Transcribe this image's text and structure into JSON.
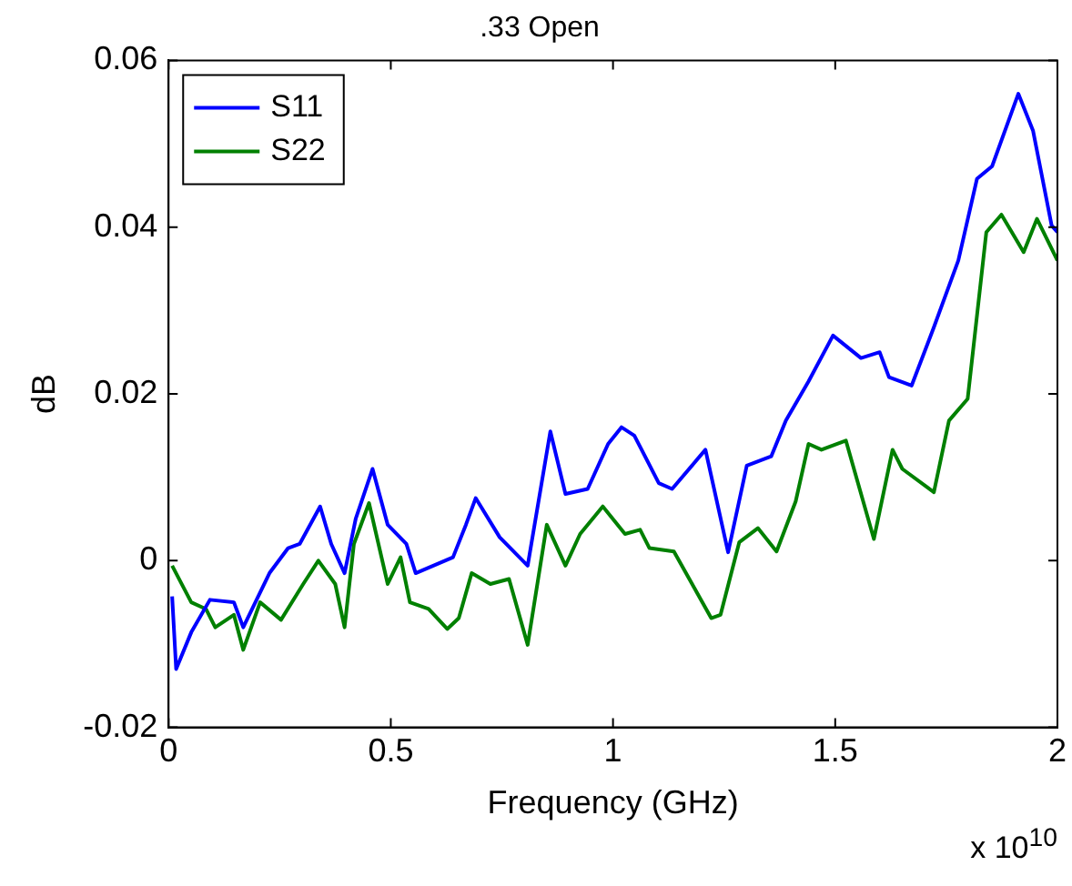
{
  "chart_data": {
    "type": "line",
    "title": ".33 Open",
    "xlabel": "Frequency (GHz)",
    "ylabel": "dB",
    "annotations": [
      "x 10$^{10}$"
    ],
    "xlim": [
      0,
      2
    ],
    "xticks": [
      0,
      0.5,
      1,
      1.5,
      2
    ],
    "ylim": [
      -0.02,
      0.06
    ],
    "yticks": [
      -0.02,
      0,
      0.02,
      0.04,
      0.06
    ],
    "legend": "top left",
    "grid": false,
    "marker": "none",
    "line_style": "solid",
    "series": [
      {
        "name": "S11",
        "color": "#0000ff",
        "x": [
          0.008,
          0.017,
          0.051,
          0.093,
          0.147,
          0.168,
          0.227,
          0.269,
          0.295,
          0.341,
          0.366,
          0.396,
          0.421,
          0.459,
          0.493,
          0.535,
          0.556,
          0.64,
          0.669,
          0.691,
          0.745,
          0.808,
          0.859,
          0.893,
          0.943,
          0.989,
          1.019,
          1.048,
          1.103,
          1.133,
          1.208,
          1.259,
          1.301,
          1.356,
          1.389,
          1.44,
          1.495,
          1.558,
          1.6,
          1.621,
          1.672,
          1.722,
          1.777,
          1.819,
          1.853,
          1.912,
          1.945,
          1.987,
          2.0
        ],
        "values": [
          -0.0043,
          -0.013,
          -0.0086,
          -0.0047,
          -0.005,
          -0.008,
          -0.0015,
          0.0015,
          0.002,
          0.0065,
          0.002,
          -0.0015,
          0.005,
          0.011,
          0.0043,
          0.002,
          -0.0015,
          0.0004,
          0.0043,
          0.0075,
          0.0028,
          -0.0006,
          0.0155,
          0.008,
          0.0086,
          0.014,
          0.016,
          0.015,
          0.0093,
          0.0086,
          0.0133,
          0.001,
          0.0114,
          0.0125,
          0.0168,
          0.0215,
          0.027,
          0.0243,
          0.025,
          0.022,
          0.021,
          0.028,
          0.036,
          0.0458,
          0.0473,
          0.056,
          0.0516,
          0.0402,
          0.0394
        ]
      },
      {
        "name": "S22",
        "color": "#008000",
        "x": [
          0.008,
          0.051,
          0.084,
          0.105,
          0.147,
          0.168,
          0.206,
          0.253,
          0.303,
          0.337,
          0.375,
          0.396,
          0.417,
          0.451,
          0.493,
          0.522,
          0.543,
          0.585,
          0.627,
          0.653,
          0.682,
          0.724,
          0.766,
          0.808,
          0.851,
          0.893,
          0.926,
          0.977,
          1.027,
          1.061,
          1.082,
          1.137,
          1.221,
          1.242,
          1.284,
          1.326,
          1.368,
          1.411,
          1.44,
          1.469,
          1.524,
          1.587,
          1.629,
          1.651,
          1.722,
          1.756,
          1.798,
          1.84,
          1.874,
          1.924,
          1.954,
          2.0
        ],
        "values": [
          -0.0006,
          -0.005,
          -0.0058,
          -0.008,
          -0.0065,
          -0.0107,
          -0.005,
          -0.0071,
          -0.0028,
          0,
          -0.0028,
          -0.008,
          0.002,
          0.0069,
          -0.0028,
          0.0004,
          -0.005,
          -0.0058,
          -0.0082,
          -0.0069,
          -0.0015,
          -0.0028,
          -0.0022,
          -0.0101,
          0.0043,
          -0.0006,
          0.0032,
          0.0065,
          0.0032,
          0.0037,
          0.0015,
          0.0011,
          -0.0069,
          -0.0065,
          0.0022,
          0.0039,
          0.0011,
          0.0071,
          0.014,
          0.0133,
          0.0144,
          0.0026,
          0.0133,
          0.011,
          0.0082,
          0.0168,
          0.0194,
          0.0394,
          0.0415,
          0.037,
          0.041,
          0.036
        ]
      }
    ]
  }
}
